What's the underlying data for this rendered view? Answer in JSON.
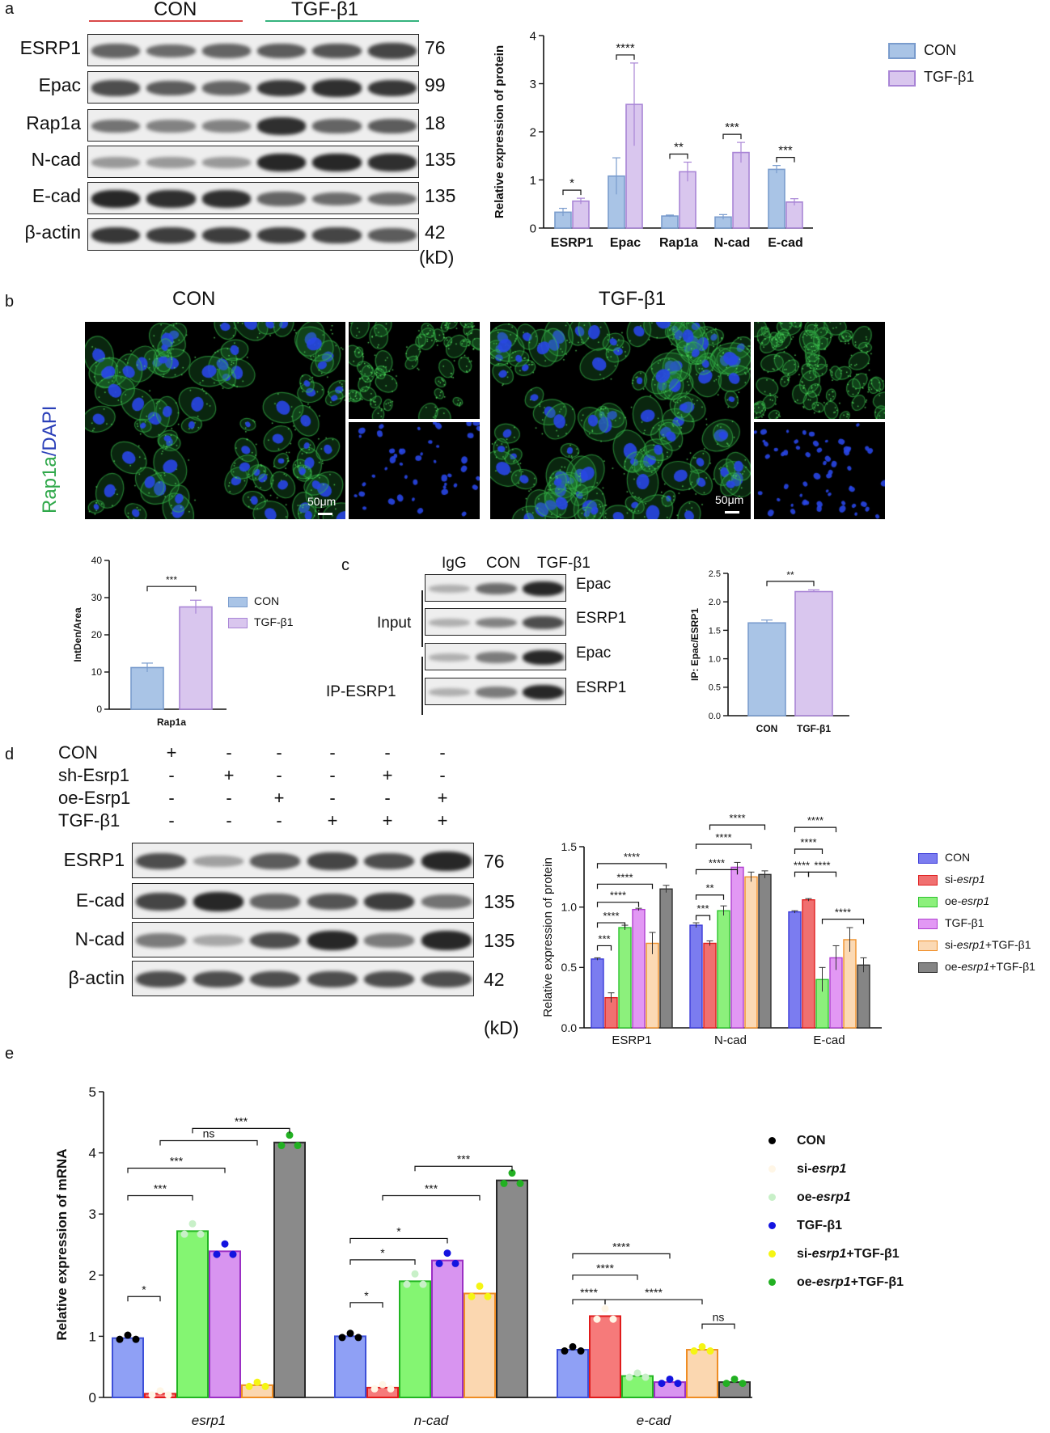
{
  "panels": {
    "a": "a",
    "b": "b",
    "c": "c",
    "d": "d",
    "e": "e"
  },
  "colors": {
    "con_blue": "#a9c4e6",
    "con_blue_edge": "#7a9ccd",
    "tgf_purple": "#d9c6ee",
    "tgf_purple_edge": "#a985d6",
    "red_line": "#d94848",
    "green_line": "#35b37e"
  },
  "panel_a": {
    "group_labels": [
      "CON",
      "TGF-β1"
    ],
    "rows": [
      {
        "label": "ESRP1",
        "kd": "76"
      },
      {
        "label": "Epac",
        "kd": "99"
      },
      {
        "label": "Rap1a",
        "kd": "18"
      },
      {
        "label": "N-cad",
        "kd": "135"
      },
      {
        "label": "E-cad",
        "kd": "135"
      },
      {
        "label": "β-actin",
        "kd": "42"
      }
    ],
    "kd_unit": "(kD)"
  },
  "panel_b": {
    "group_labels": [
      "CON",
      "TGF-β1"
    ],
    "stain_label_green": "Rap1a",
    "stain_label_sep": "/",
    "stain_label_blue": "DAPI",
    "scale_label": "50μm"
  },
  "panel_c": {
    "lane_labels": [
      "IgG",
      "CON",
      "TGF-β1"
    ],
    "section_labels": [
      "Input",
      "IP-ESRP1"
    ],
    "row_labels": [
      "Epac",
      "ESRP1",
      "Epac",
      "ESRP1"
    ]
  },
  "panel_d": {
    "conditions": [
      {
        "label": "CON",
        "signs": [
          "+",
          "-",
          "-",
          "-",
          "-",
          "-"
        ]
      },
      {
        "label": "sh-Esrp1",
        "signs": [
          "-",
          "+",
          "-",
          "-",
          "+",
          "-"
        ]
      },
      {
        "label": "oe-Esrp1",
        "signs": [
          "-",
          "-",
          "+",
          "-",
          "-",
          "+"
        ]
      },
      {
        "label": "TGF-β1",
        "signs": [
          "-",
          "-",
          "-",
          "+",
          "+",
          "+"
        ]
      }
    ],
    "rows": [
      {
        "label": "ESRP1",
        "kd": "76"
      },
      {
        "label": "E-cad",
        "kd": "135"
      },
      {
        "label": "N-cad",
        "kd": "135"
      },
      {
        "label": "β-actin",
        "kd": "42"
      }
    ],
    "kd_unit": "(kD)"
  },
  "chart_data": [
    {
      "id": "a_bar",
      "type": "bar",
      "ylabel": "Relative expression of protein",
      "ylim": [
        0,
        4
      ],
      "yticks": [
        0,
        1,
        2,
        3,
        4
      ],
      "categories": [
        "ESRP1",
        "Epac",
        "Rap1a",
        "N-cad",
        "E-cad"
      ],
      "series": [
        {
          "name": "CON",
          "values": [
            0.33,
            1.08,
            0.25,
            0.23,
            1.22
          ],
          "errors": [
            0.08,
            0.38,
            0.02,
            0.05,
            0.08
          ],
          "color": "#a9c4e6",
          "edge": "#7a9ccd"
        },
        {
          "name": "TGF-β1",
          "values": [
            0.56,
            2.57,
            1.17,
            1.57,
            0.54
          ],
          "errors": [
            0.06,
            0.86,
            0.2,
            0.21,
            0.07
          ],
          "color": "#d9c6ee",
          "edge": "#a985d6"
        }
      ],
      "significance": [
        "*",
        "****",
        "**",
        "***",
        "***"
      ],
      "legend": "top-right",
      "grid": false
    },
    {
      "id": "b_bar",
      "type": "bar",
      "ylabel": "IntDen/Area",
      "ylim": [
        0,
        40
      ],
      "yticks": [
        0,
        10,
        20,
        30,
        40
      ],
      "categories": [
        "Rap1a"
      ],
      "series": [
        {
          "name": "CON",
          "values": [
            11.2
          ],
          "errors": [
            1.2
          ],
          "color": "#a9c4e6",
          "edge": "#7a9ccd"
        },
        {
          "name": "TGF-β1",
          "values": [
            27.5
          ],
          "errors": [
            1.8
          ],
          "color": "#d9c6ee",
          "edge": "#a985d6"
        }
      ],
      "significance": [
        "***"
      ],
      "legend": "right",
      "grid": false
    },
    {
      "id": "c_bar",
      "type": "bar",
      "ylabel": "IP: Epac/ESRP1",
      "ylim": [
        0,
        2.5
      ],
      "yticks": [
        "0.0",
        "0.5",
        "1.0",
        "1.5",
        "2.0",
        "2.5"
      ],
      "categories": [
        "CON",
        "TGF-β1"
      ],
      "values": [
        1.63,
        2.18
      ],
      "errors": [
        0.05,
        0.03
      ],
      "colors": [
        "#a9c4e6",
        "#d9c6ee"
      ],
      "edges": [
        "#7a9ccd",
        "#a985d6"
      ],
      "significance": [
        "**"
      ],
      "grid": false
    },
    {
      "id": "d_bar",
      "type": "bar",
      "ylabel": "Relative expression of protein",
      "ylim": [
        0,
        1.5
      ],
      "yticks": [
        "0.0",
        "0.5",
        "1.0",
        "1.5"
      ],
      "categories": [
        "ESRP1",
        "N-cad",
        "E-cad"
      ],
      "series": [
        {
          "name": "CON",
          "values": [
            0.57,
            0.85,
            0.96
          ],
          "errors": [
            0.01,
            0.02,
            0.01
          ],
          "color": "#7b7cf0",
          "edge": "#3b3bd8"
        },
        {
          "name": "si-esrp1",
          "values": [
            0.25,
            0.7,
            1.06
          ],
          "errors": [
            0.04,
            0.02,
            0.01
          ],
          "color": "#f07070",
          "edge": "#e02020"
        },
        {
          "name": "oe-esrp1",
          "values": [
            0.83,
            0.97,
            0.4
          ],
          "errors": [
            0.02,
            0.04,
            0.1
          ],
          "color": "#8cf07c",
          "edge": "#2ec42e"
        },
        {
          "name": "TGF-β1",
          "values": [
            0.98,
            1.33,
            0.58
          ],
          "errors": [
            0.01,
            0.04,
            0.1
          ],
          "color": "#e298f4",
          "edge": "#b03fd0"
        },
        {
          "name": "si-esrp1+TGF-β1",
          "values": [
            0.7,
            1.25,
            0.73
          ],
          "errors": [
            0.09,
            0.04,
            0.1
          ],
          "color": "#fbd9b4",
          "edge": "#f0902a"
        },
        {
          "name": "oe-esrp1+TGF-β1",
          "values": [
            1.15,
            1.27,
            0.52
          ],
          "errors": [
            0.03,
            0.03,
            0.06
          ],
          "color": "#858585",
          "edge": "#303030"
        }
      ],
      "legend_main": [
        "CON",
        "si-",
        "oe-",
        "TGF-β1",
        "si-",
        "oe-"
      ],
      "legend_italic": [
        "",
        "esrp1",
        "esrp1",
        "",
        "esrp1",
        "esrp1"
      ],
      "legend_suffix": [
        "",
        "",
        "",
        "",
        "+TGF-β1",
        "+TGF-β1"
      ],
      "legend": "right",
      "grid": false
    },
    {
      "id": "e_bar",
      "type": "bar",
      "ylabel": "Relative  expression of mRNA",
      "ylim": [
        0,
        5
      ],
      "yticks": [
        0,
        1,
        2,
        3,
        4,
        5
      ],
      "categories": [
        "esrp1",
        "n-cad",
        "e-cad"
      ],
      "series": [
        {
          "name": "CON",
          "values": [
            0.97,
            1.0,
            0.78
          ],
          "color": "#8fa0f5",
          "edge": "#3d4fd8",
          "dot": "#000000"
        },
        {
          "name": "si-esrp1",
          "values": [
            0.06,
            0.16,
            1.33
          ],
          "color": "#f67a7a",
          "edge": "#e01b1b",
          "dot": "#fff6e6"
        },
        {
          "name": "oe-esrp1",
          "values": [
            2.72,
            1.9,
            0.35
          ],
          "color": "#84f572",
          "edge": "#22b522",
          "dot": "#c8f0c8"
        },
        {
          "name": "TGF-β1",
          "values": [
            2.39,
            2.24,
            0.25
          ],
          "color": "#d894f0",
          "edge": "#9b2fc4",
          "dot": "#1414e0"
        },
        {
          "name": "si-esrp1+TGF-β1",
          "values": [
            0.2,
            1.7,
            0.78
          ],
          "color": "#fbd7b0",
          "edge": "#ef8d24",
          "dot": "#f5f514"
        },
        {
          "name": "oe-esrp1+TGF-β1",
          "values": [
            4.17,
            3.55,
            0.25
          ],
          "color": "#8a8a8a",
          "edge": "#2a2a2a",
          "dot": "#22b022"
        }
      ],
      "legend_main": [
        "CON",
        "si-",
        "oe-",
        "TGF-β1",
        "si-",
        "oe-"
      ],
      "legend_italic": [
        "",
        "esrp1",
        "esrp1",
        "",
        "esrp1",
        "esrp1"
      ],
      "legend_suffix": [
        "",
        "",
        "",
        "",
        "+TGF-β1",
        "+TGF-β1"
      ],
      "significance_labels": [
        "*",
        "***",
        "***",
        "ns",
        "***",
        "*",
        "*",
        "*",
        "***",
        "***",
        "****",
        "****",
        "****",
        "****",
        "ns"
      ],
      "legend": "right",
      "grid": false
    }
  ]
}
